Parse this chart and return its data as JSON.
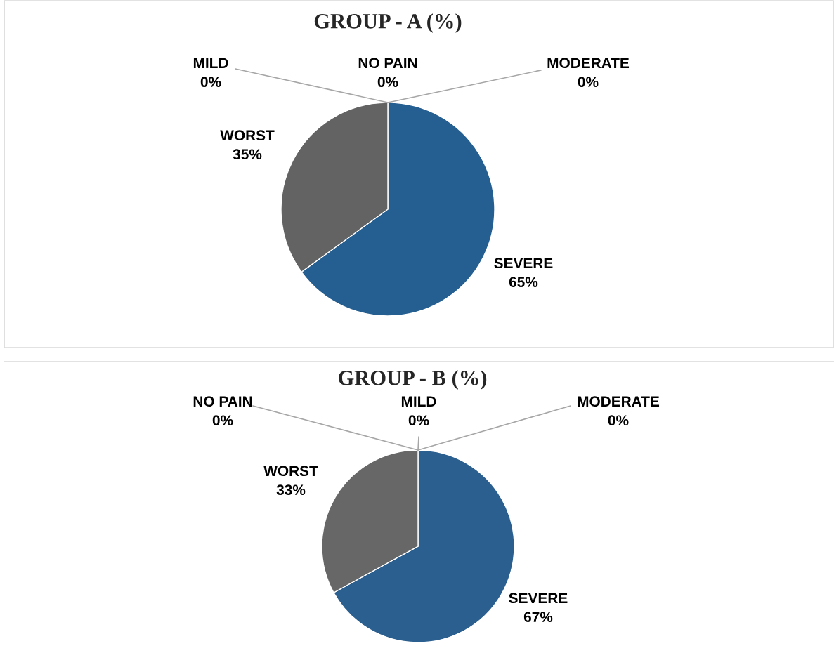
{
  "chart_data": [
    {
      "type": "pie",
      "title": "GROUP - A (%)",
      "categories": [
        "NO PAIN",
        "MILD",
        "MODERATE",
        "SEVERE",
        "WORST"
      ],
      "values": [
        0,
        0,
        0,
        65,
        35
      ],
      "value_labels": [
        "0%",
        "0%",
        "0%",
        "65%",
        "35%"
      ],
      "colors": [
        "#5b9bd5",
        "#ed7d31",
        "#a5a5a5",
        "#255e91",
        "#636363"
      ]
    },
    {
      "type": "pie",
      "title": "GROUP - B (%)",
      "categories": [
        "NO PAIN",
        "MILD",
        "MODERATE",
        "SEVERE",
        "WORST"
      ],
      "values": [
        0,
        0,
        0,
        67,
        33
      ],
      "value_labels": [
        "0%",
        "0%",
        "0%",
        "67%",
        "33%"
      ],
      "colors": [
        "#5b9bd5",
        "#ed7d31",
        "#a5a5a5",
        "#2b5f8f",
        "#676767"
      ]
    }
  ]
}
